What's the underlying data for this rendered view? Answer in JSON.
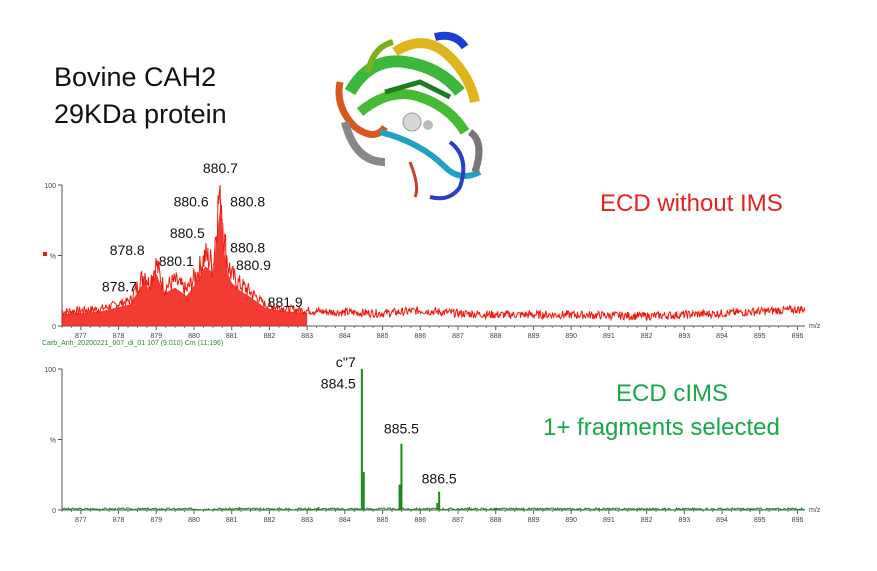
{
  "title": {
    "line1": "Bovine CAH2",
    "line2": "29KDa protein"
  },
  "notes": {
    "top": "ECD without IMS",
    "bottom_line1": "ECD cIMS",
    "bottom_line2": "1+ fragments selected"
  },
  "colors": {
    "top_series": "#f01a0f",
    "bottom_series": "#1b8a1b",
    "note_red": "#e8201e",
    "note_green": "#1aa64a"
  },
  "chart_data": [
    {
      "type": "line",
      "xlim": [
        876.5,
        896.2
      ],
      "ylim": [
        0,
        100
      ],
      "x_ticks": [
        "877",
        "878",
        "879",
        "880",
        "881",
        "882",
        "883",
        "884",
        "885",
        "886",
        "887",
        "888",
        "889",
        "890",
        "891",
        "892",
        "893",
        "894",
        "895",
        "896"
      ],
      "y_ticks": [
        "100",
        "%",
        "0"
      ],
      "xlabel": "m/z",
      "footer": "Carb_Anh_20200221_007_di_01 107 (9.010) Cm (11:196)",
      "series": [
        {
          "x": [
            876.5,
            877.5,
            878.3,
            878.7,
            878.8,
            879.0,
            879.2,
            879.5,
            879.8,
            880.1,
            880.3,
            880.45,
            880.5,
            880.6,
            880.7,
            880.8,
            880.9,
            881.0,
            881.2,
            881.5,
            881.9,
            882.5,
            883.5,
            885.0,
            886.0,
            887.0,
            888.0,
            890.0,
            892.0,
            894.0,
            896.2
          ],
          "y": [
            10,
            12,
            18,
            38,
            30,
            44,
            27,
            32,
            25,
            38,
            50,
            46,
            40,
            74,
            100,
            62,
            44,
            36,
            30,
            24,
            15,
            12,
            10,
            9,
            11,
            9,
            8,
            8,
            7,
            9,
            12
          ]
        }
      ],
      "annotations": [
        {
          "label": "880.7",
          "x": 880.7,
          "y": 100
        },
        {
          "label": "880.6",
          "x": 880.6,
          "y": 82
        },
        {
          "label": "880.8",
          "x": 880.8,
          "y": 82
        },
        {
          "label": "880.5",
          "x": 880.5,
          "y": 64
        },
        {
          "label": "880.8",
          "x": 880.8,
          "y": 62
        },
        {
          "label": "880.1",
          "x": 880.1,
          "y": 44
        },
        {
          "label": "878.8",
          "x": 878.8,
          "y": 46
        },
        {
          "label": "880.9",
          "x": 880.9,
          "y": 44
        },
        {
          "label": "878.7",
          "x": 878.7,
          "y": 30
        },
        {
          "label": "881.9",
          "x": 881.9,
          "y": 15
        }
      ]
    },
    {
      "type": "line",
      "xlim": [
        876.5,
        896.2
      ],
      "ylim": [
        0,
        100
      ],
      "x_ticks": [
        "877",
        "878",
        "879",
        "880",
        "881",
        "882",
        "883",
        "884",
        "885",
        "886",
        "887",
        "888",
        "889",
        "890",
        "891",
        "892",
        "893",
        "894",
        "895",
        "896"
      ],
      "y_ticks": [
        "100",
        "%",
        "0"
      ],
      "xlabel": "m/z",
      "series": [
        {
          "peaks": [
            {
              "x": 884.45,
              "y": 100
            },
            {
              "x": 884.5,
              "y": 27
            },
            {
              "x": 885.5,
              "y": 47
            },
            {
              "x": 885.45,
              "y": 18
            },
            {
              "x": 886.5,
              "y": 13
            },
            {
              "x": 886.45,
              "y": 5
            },
            {
              "x": 881.2,
              "y": 2
            },
            {
              "x": 883.3,
              "y": 2
            },
            {
              "x": 887.3,
              "y": 2
            },
            {
              "x": 888.0,
              "y": 1.5
            }
          ]
        }
      ],
      "annotations": [
        {
          "label": "c''7",
          "x": 884.45,
          "y": 100
        },
        {
          "label": "884.5",
          "x": 884.45,
          "y": 92
        },
        {
          "label": "885.5",
          "x": 885.5,
          "y": 47
        },
        {
          "label": "886.5",
          "x": 886.5,
          "y": 13
        }
      ]
    }
  ]
}
